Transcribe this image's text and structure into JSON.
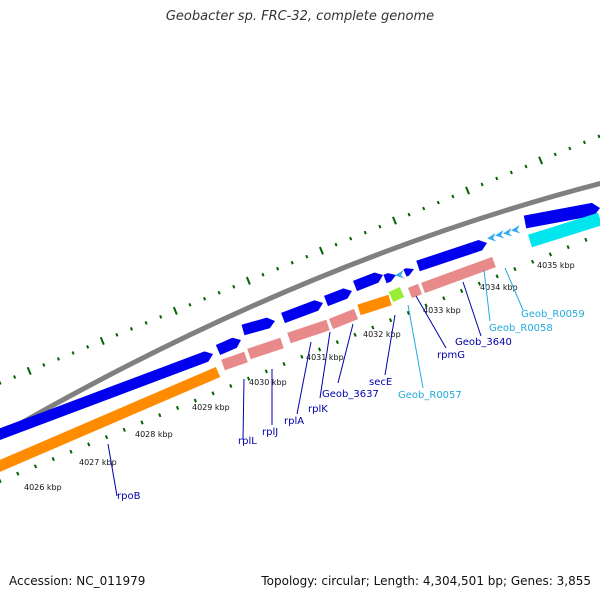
{
  "title": "Geobacter sp. FRC-32, complete genome",
  "footer": {
    "accession": "Accession: NC_011979",
    "summary": "Topology: circular; Length: 4,304,501 bp; Genes: 3,855"
  },
  "colors": {
    "backbone": "#808080",
    "cds_blue": "#0000ee",
    "rrna_orange": "#ff8c00",
    "trna_cyan": "#00e5ee",
    "gene_salmon": "#e88a8a",
    "green_feature": "#99ee33",
    "light_arrow": "#33aaee",
    "tick_green": "#006400",
    "label_blue": "#0000aa",
    "label_cyan": "#22aadd"
  },
  "kbp_ticks": [
    "4026 kbp",
    "4027 kbp",
    "4028 kbp",
    "4029 kbp",
    "4030 kbp",
    "4031 kbp",
    "4032 kbp",
    "4033 kbp",
    "4034 kbp",
    "4035 kbp"
  ],
  "gene_labels": [
    {
      "text": "rpoB",
      "color": "label_blue"
    },
    {
      "text": "rplL",
      "color": "label_blue"
    },
    {
      "text": "rplJ",
      "color": "label_blue"
    },
    {
      "text": "rplA",
      "color": "label_blue"
    },
    {
      "text": "rplK",
      "color": "label_blue"
    },
    {
      "text": "Geob_3637",
      "color": "label_blue"
    },
    {
      "text": "secE",
      "color": "label_blue"
    },
    {
      "text": "Geob_R0057",
      "color": "label_cyan"
    },
    {
      "text": "rpmG",
      "color": "label_blue"
    },
    {
      "text": "Geob_3640",
      "color": "label_blue"
    },
    {
      "text": "Geob_R0058",
      "color": "label_cyan"
    },
    {
      "text": "Geob_R0059",
      "color": "label_cyan"
    }
  ]
}
